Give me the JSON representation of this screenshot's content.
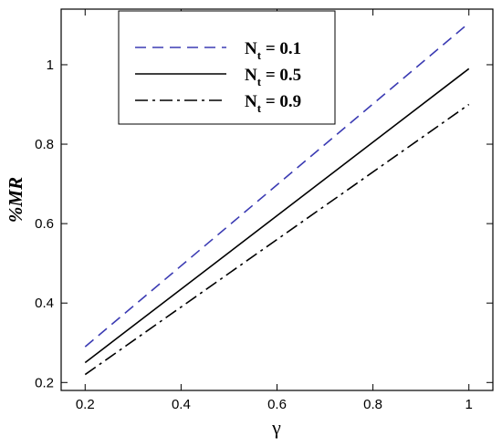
{
  "chart_data": {
    "type": "line",
    "title": "",
    "xlabel": "γ",
    "ylabel": "%MR",
    "xlim": [
      0.15,
      1.05
    ],
    "ylim": [
      0.18,
      1.14
    ],
    "x_ticks": [
      {
        "value": 0.2,
        "label": "0.2"
      },
      {
        "value": 0.4,
        "label": "0.4"
      },
      {
        "value": 0.6,
        "label": "0.6"
      },
      {
        "value": 0.8,
        "label": "0.8"
      },
      {
        "value": 1.0,
        "label": "1"
      }
    ],
    "y_ticks": [
      {
        "value": 0.2,
        "label": "0.2"
      },
      {
        "value": 0.4,
        "label": "0.4"
      },
      {
        "value": 0.6,
        "label": "0.6"
      },
      {
        "value": 0.8,
        "label": "0.8"
      },
      {
        "value": 1.0,
        "label": "1"
      }
    ],
    "grid": false,
    "legend_position": "top-center",
    "series": [
      {
        "name_main": "N",
        "name_sub": "t",
        "name_rest": " = 0.1",
        "color": "#3b3bb3",
        "dash": "dashed",
        "x": [
          0.2,
          1.0
        ],
        "y": [
          0.29,
          1.105
        ]
      },
      {
        "name_main": "N",
        "name_sub": "t",
        "name_rest": " = 0.5",
        "color": "#000000",
        "dash": "solid",
        "x": [
          0.2,
          1.0
        ],
        "y": [
          0.25,
          0.99
        ]
      },
      {
        "name_main": "N",
        "name_sub": "t",
        "name_rest": " = 0.9",
        "color": "#000000",
        "dash": "dashdot",
        "x": [
          0.2,
          1.0
        ],
        "y": [
          0.22,
          0.9
        ]
      }
    ]
  }
}
